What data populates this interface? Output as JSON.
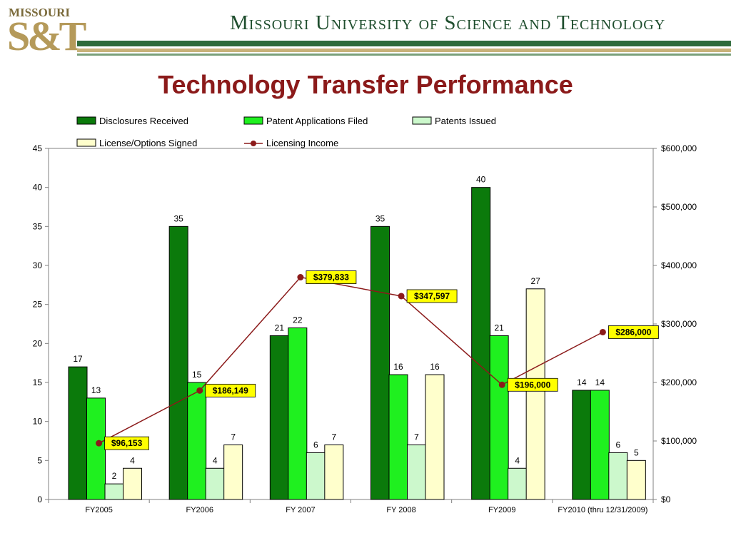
{
  "header": {
    "logo_top": "MISSOURI",
    "logo_main": "S&T",
    "university": "Missouri University of Science and Technology"
  },
  "chart_data": {
    "type": "bar",
    "title": "Technology Transfer Performance",
    "categories": [
      "FY2005",
      "FY2006",
      "FY 2007",
      "FY 2008",
      "FY2009",
      "FY2010 (thru 12/31/2009)"
    ],
    "series": [
      {
        "name": "Disclosures Received",
        "values": [
          17,
          35,
          21,
          35,
          40,
          14
        ],
        "color": "#0b7a0b",
        "labels": [
          "17",
          "35",
          "21",
          "35",
          "40",
          "14"
        ]
      },
      {
        "name": "Patent Applications Filed",
        "values": [
          13,
          15,
          22,
          16,
          21,
          14
        ],
        "color": "#1ff01f",
        "labels": [
          "13",
          "15",
          "22",
          "16",
          "21",
          "14"
        ]
      },
      {
        "name": "Patents Issued",
        "values": [
          2,
          4,
          6,
          7,
          4,
          6
        ],
        "color": "#ccf8cc",
        "labels": [
          "2",
          "4",
          "6",
          "7",
          "4",
          "6"
        ]
      },
      {
        "name": "License/Options Signed",
        "values": [
          4,
          7,
          7,
          16,
          27,
          5
        ],
        "color": "#ffffcc",
        "labels": [
          "4",
          "7",
          "7",
          "16",
          "27",
          "5"
        ]
      }
    ],
    "line_series": {
      "name": "Licensing Income",
      "values": [
        96153,
        186149,
        379833,
        347597,
        196000,
        286000
      ],
      "labels": [
        "$96,153",
        "$186,149",
        "$379,833",
        "$347,597",
        "$196,000",
        "$286,000"
      ],
      "color": "#8b1a1a"
    },
    "y_left": {
      "min": 0,
      "max": 45,
      "ticks": [
        0,
        5,
        10,
        15,
        20,
        25,
        30,
        35,
        40,
        45
      ]
    },
    "y_right": {
      "min": 0,
      "max": 600000,
      "ticks": [
        0,
        100000,
        200000,
        300000,
        400000,
        500000,
        600000
      ],
      "tick_labels": [
        "$0",
        "$100,000",
        "$200,000",
        "$300,000",
        "$400,000",
        "$500,000",
        "$600,000"
      ]
    },
    "grid": false,
    "legend_placement": "top"
  }
}
